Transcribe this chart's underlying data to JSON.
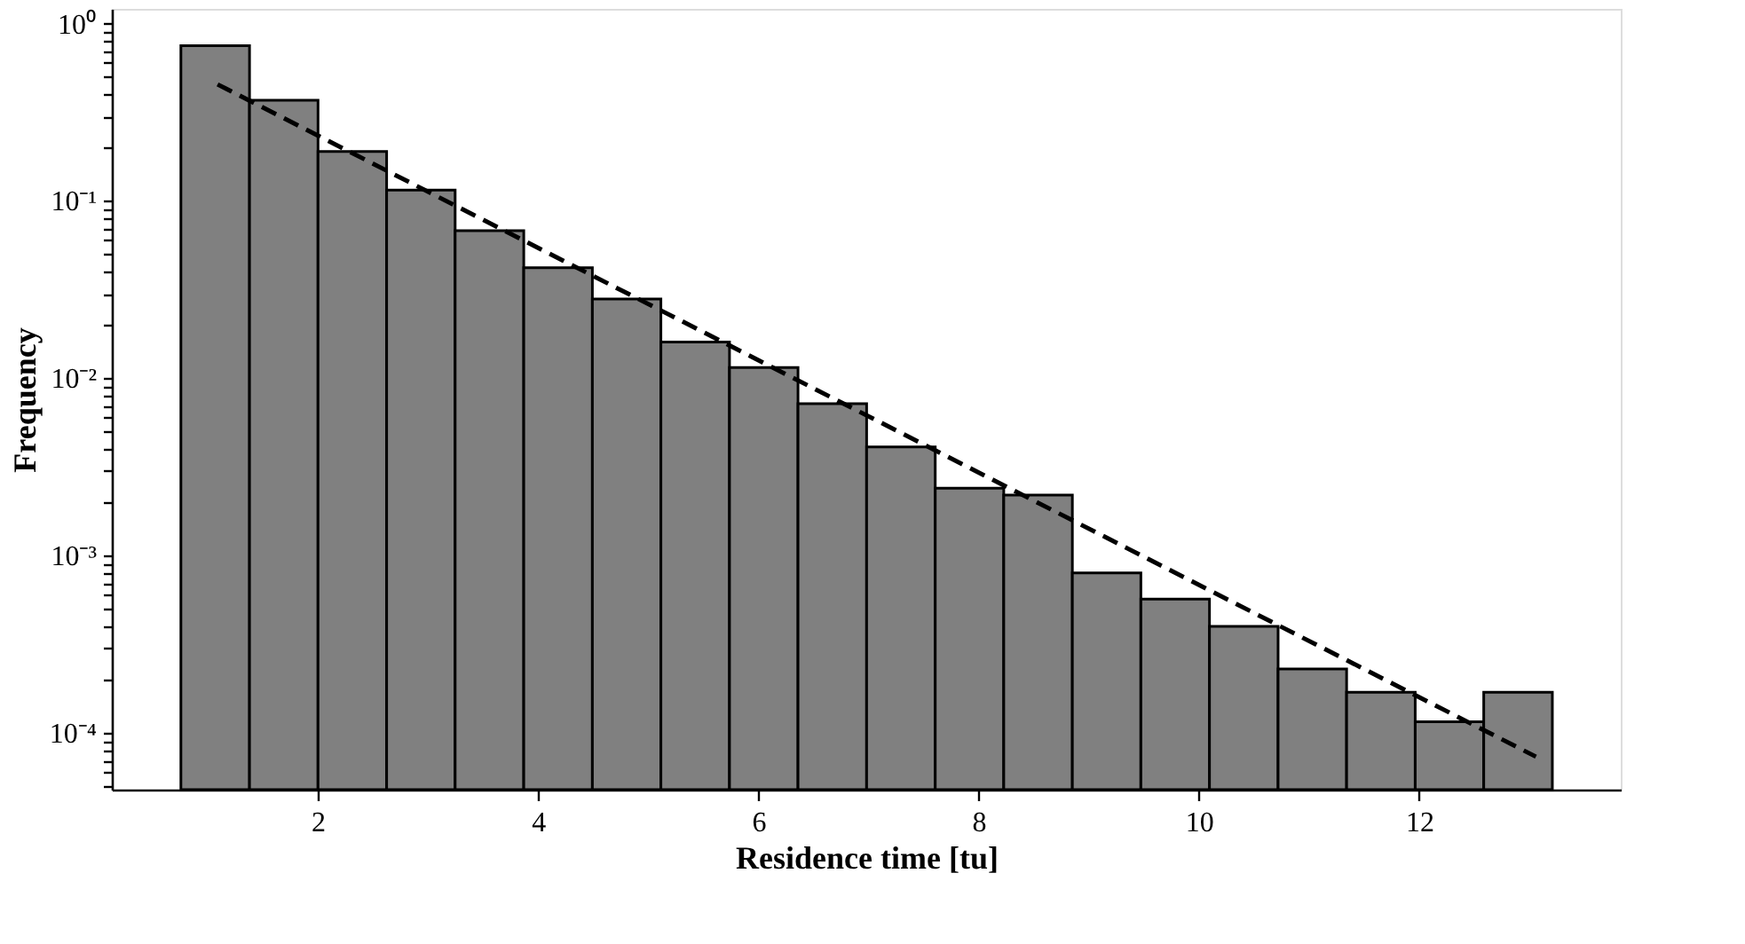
{
  "chart_data": {
    "type": "histogram",
    "xlabel": "Residence time [tu]",
    "ylabel": "Frequency",
    "bins": [
      0.757,
      1.38,
      2.002,
      2.625,
      3.247,
      3.87,
      4.493,
      5.115,
      5.738,
      6.36,
      6.983,
      7.606,
      8.228,
      8.851,
      9.473,
      10.096,
      10.719,
      11.341,
      11.964,
      12.586,
      13.209
    ],
    "values": [
      0.75,
      0.37,
      0.19,
      0.115,
      0.068,
      0.042,
      0.028,
      0.016,
      0.0115,
      0.0072,
      0.0041,
      0.0024,
      0.0022,
      0.0008,
      0.00057,
      0.0004,
      0.00023,
      0.00017,
      0.000116,
      0.00017
    ],
    "color": "#808080",
    "series": [
      {
        "type": "line",
        "x": [
          1.09,
          13.06
        ],
        "values": [
          0.454,
          7.36e-05
        ],
        "color": "#000000",
        "line_style": "dashed"
      }
    ],
    "log": "y",
    "grid": false,
    "xlim": [
      0.13,
      13.83
    ],
    "xticks": [
      2,
      4,
      6,
      8,
      10,
      12
    ],
    "ylim": [
      4.8e-05,
      1.21
    ],
    "yticks": [
      {
        "value": 5e-05,
        "label": null
      },
      {
        "value": 6e-05,
        "label": null
      },
      {
        "value": 7e-05,
        "label": null
      },
      {
        "value": 8e-05,
        "label": null
      },
      {
        "value": 9e-05,
        "label": null
      },
      {
        "value": 0.0001,
        "label": "10⁻⁴"
      },
      {
        "value": 0.0002,
        "label": null
      },
      {
        "value": 0.0003,
        "label": null
      },
      {
        "value": 0.0004,
        "label": null
      },
      {
        "value": 0.0005,
        "label": null
      },
      {
        "value": 0.0006,
        "label": null
      },
      {
        "value": 0.0007,
        "label": null
      },
      {
        "value": 0.0008,
        "label": null
      },
      {
        "value": 0.0009,
        "label": null
      },
      {
        "value": 0.001,
        "label": "10⁻³"
      },
      {
        "value": 0.002,
        "label": null
      },
      {
        "value": 0.003,
        "label": null
      },
      {
        "value": 0.004,
        "label": null
      },
      {
        "value": 0.005,
        "label": null
      },
      {
        "value": 0.006,
        "label": null
      },
      {
        "value": 0.007,
        "label": null
      },
      {
        "value": 0.008,
        "label": null
      },
      {
        "value": 0.009,
        "label": null
      },
      {
        "value": 0.01,
        "label": "10⁻²"
      },
      {
        "value": 0.02,
        "label": null
      },
      {
        "value": 0.03,
        "label": null
      },
      {
        "value": 0.04,
        "label": null
      },
      {
        "value": 0.05,
        "label": null
      },
      {
        "value": 0.06,
        "label": null
      },
      {
        "value": 0.07,
        "label": null
      },
      {
        "value": 0.08,
        "label": null
      },
      {
        "value": 0.09,
        "label": null
      },
      {
        "value": 0.1,
        "label": "10⁻¹"
      },
      {
        "value": 0.2,
        "label": null
      },
      {
        "value": 0.3,
        "label": null
      },
      {
        "value": 0.4,
        "label": null
      },
      {
        "value": 0.5,
        "label": null
      },
      {
        "value": 0.6,
        "label": null
      },
      {
        "value": 0.7,
        "label": null
      },
      {
        "value": 0.8,
        "label": null
      },
      {
        "value": 0.9,
        "label": null
      },
      {
        "value": 1,
        "label": "10⁰"
      }
    ]
  }
}
